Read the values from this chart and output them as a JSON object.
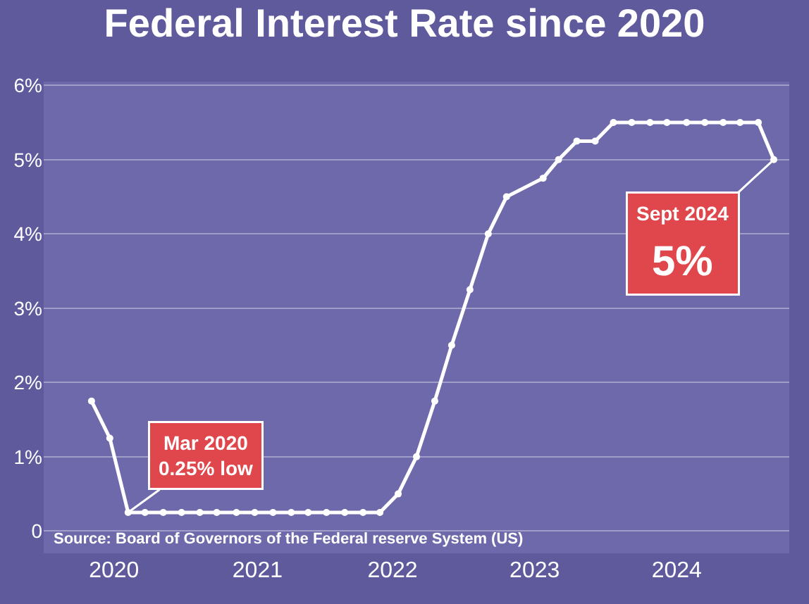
{
  "chart_data": {
    "type": "line",
    "title": "Federal Interest Rate since 2020",
    "x": [
      2019.84,
      2019.97,
      2020.1,
      2020.22,
      2020.35,
      2020.48,
      2020.61,
      2020.73,
      2020.87,
      2021.0,
      2021.13,
      2021.26,
      2021.38,
      2021.51,
      2021.64,
      2021.77,
      2021.89,
      2022.02,
      2022.15,
      2022.28,
      2022.4,
      2022.53,
      2022.66,
      2022.79,
      2023.05,
      2023.16,
      2023.29,
      2023.42,
      2023.55,
      2023.68,
      2023.81,
      2023.93,
      2024.07,
      2024.2,
      2024.33,
      2024.45,
      2024.58,
      2024.69
    ],
    "series": [
      {
        "color": "#ffffff",
        "values": [
          1.75,
          1.25,
          0.25,
          0.25,
          0.25,
          0.25,
          0.25,
          0.25,
          0.25,
          0.25,
          0.25,
          0.25,
          0.25,
          0.25,
          0.25,
          0.25,
          0.25,
          0.5,
          1.0,
          1.75,
          2.5,
          3.25,
          4.0,
          4.5,
          4.75,
          5.0,
          5.25,
          5.25,
          5.5,
          5.5,
          5.5,
          5.5,
          5.5,
          5.5,
          5.5,
          5.5,
          5.5,
          5.0
        ]
      }
    ],
    "xlim": [
      2019.5,
      2024.8
    ],
    "xticks": [
      {
        "value": 2020.0,
        "label": "2020"
      },
      {
        "value": 2021.02,
        "label": "2021"
      },
      {
        "value": 2021.98,
        "label": "2022"
      },
      {
        "value": 2022.99,
        "label": "2023"
      },
      {
        "value": 2024.0,
        "label": "2024"
      }
    ],
    "ylim": [
      -0.3,
      6.05
    ],
    "yticks": [
      0,
      {
        "value": 1,
        "label": "1%"
      },
      {
        "value": 2,
        "label": "2%"
      },
      {
        "value": 3,
        "label": "3%"
      },
      {
        "value": 4,
        "label": "4%"
      },
      {
        "value": 5,
        "label": "5%"
      },
      {
        "value": 6,
        "label": "6%"
      }
    ],
    "grid": "y",
    "marker": "circle",
    "line_style": "solid",
    "annotations": [
      {
        "text": "Mar 2020\n0.25% low",
        "x": 2020.1,
        "y": 0.25
      },
      {
        "text": "Sept 2024\n5%",
        "x": 2024.69,
        "y": 5.0
      },
      "Source: Board of Governors of the Federal reserve System (US)"
    ]
  }
}
